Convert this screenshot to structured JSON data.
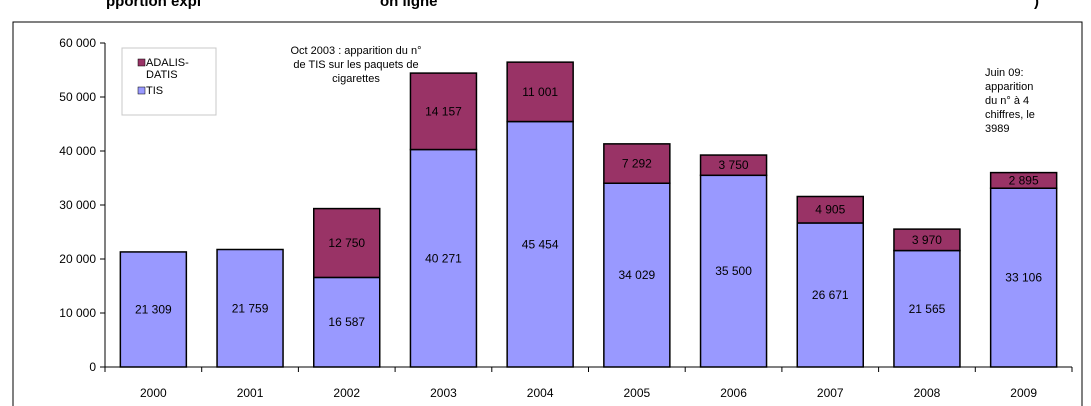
{
  "chart_data": {
    "type": "bar",
    "stacked": true,
    "title_left": "pportion expl",
    "title_mid": "on ligne",
    "title_right": ")",
    "categories": [
      "2000",
      "2001",
      "2002",
      "2003",
      "2004",
      "2005",
      "2006",
      "2007",
      "2008",
      "2009"
    ],
    "series": [
      {
        "name": "TIS",
        "color": "#9999ff",
        "values": [
          21309,
          21759,
          16587,
          40271,
          45454,
          34029,
          35500,
          26671,
          21565,
          33106
        ],
        "labels": [
          "21 309",
          "21 759",
          "16 587",
          "40 271",
          "45 454",
          "34 029",
          "35 500",
          "26 671",
          "21 565",
          "33 106"
        ]
      },
      {
        "name": "ADALIS-\nDATIS",
        "color": "#993366",
        "values": [
          0,
          0,
          12750,
          14157,
          11001,
          7292,
          3750,
          4905,
          3970,
          2895
        ],
        "labels": [
          "",
          "",
          "12 750",
          "14 157",
          "11 001",
          "7 292",
          "3 750",
          "4 905",
          "3 970",
          "2 895"
        ]
      }
    ],
    "ylim": [
      0,
      60000
    ],
    "yticks": [
      0,
      10000,
      20000,
      30000,
      40000,
      50000,
      60000
    ],
    "ytick_labels": [
      "0",
      "10 000",
      "20 000",
      "30 000",
      "40 000",
      "50 000",
      "60 000"
    ],
    "grid": false,
    "legend_position": "top-left",
    "annotations": [
      {
        "text": [
          "Oct 2003 : apparition du n°",
          "de TIS sur les paquets de",
          "cigarettes"
        ]
      },
      {
        "text": [
          "Juin 09:",
          "apparition",
          "du n° à 4",
          "chiffres, le",
          "3989"
        ]
      }
    ]
  }
}
